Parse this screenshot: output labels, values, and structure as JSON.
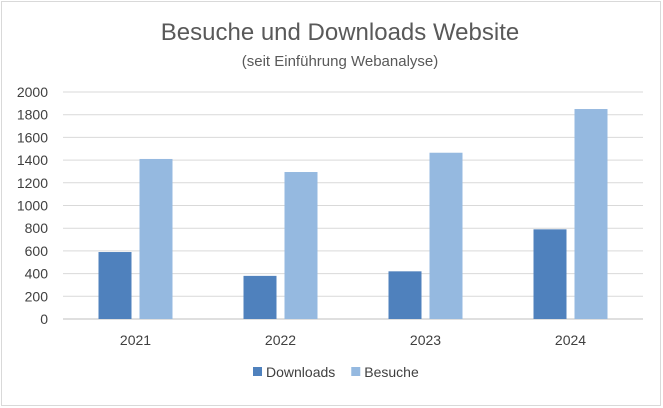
{
  "chart_data": {
    "type": "bar",
    "title": "Besuche und Downloads Website",
    "subtitle": "(seit Einführung Webanalyse)",
    "categories": [
      "2021",
      "2022",
      "2023",
      "2024"
    ],
    "series": [
      {
        "name": "Downloads",
        "values": [
          590,
          380,
          420,
          790
        ],
        "color": "#4f81bd"
      },
      {
        "name": "Besuche",
        "values": [
          1410,
          1295,
          1465,
          1850
        ],
        "color": "#95b9e0"
      }
    ],
    "ylim": [
      0,
      2000
    ],
    "yticks": [
      "0",
      "200",
      "400",
      "600",
      "800",
      "1000",
      "1200",
      "1400",
      "1600",
      "1800",
      "2000"
    ],
    "grid": true,
    "legend": "bottom"
  }
}
